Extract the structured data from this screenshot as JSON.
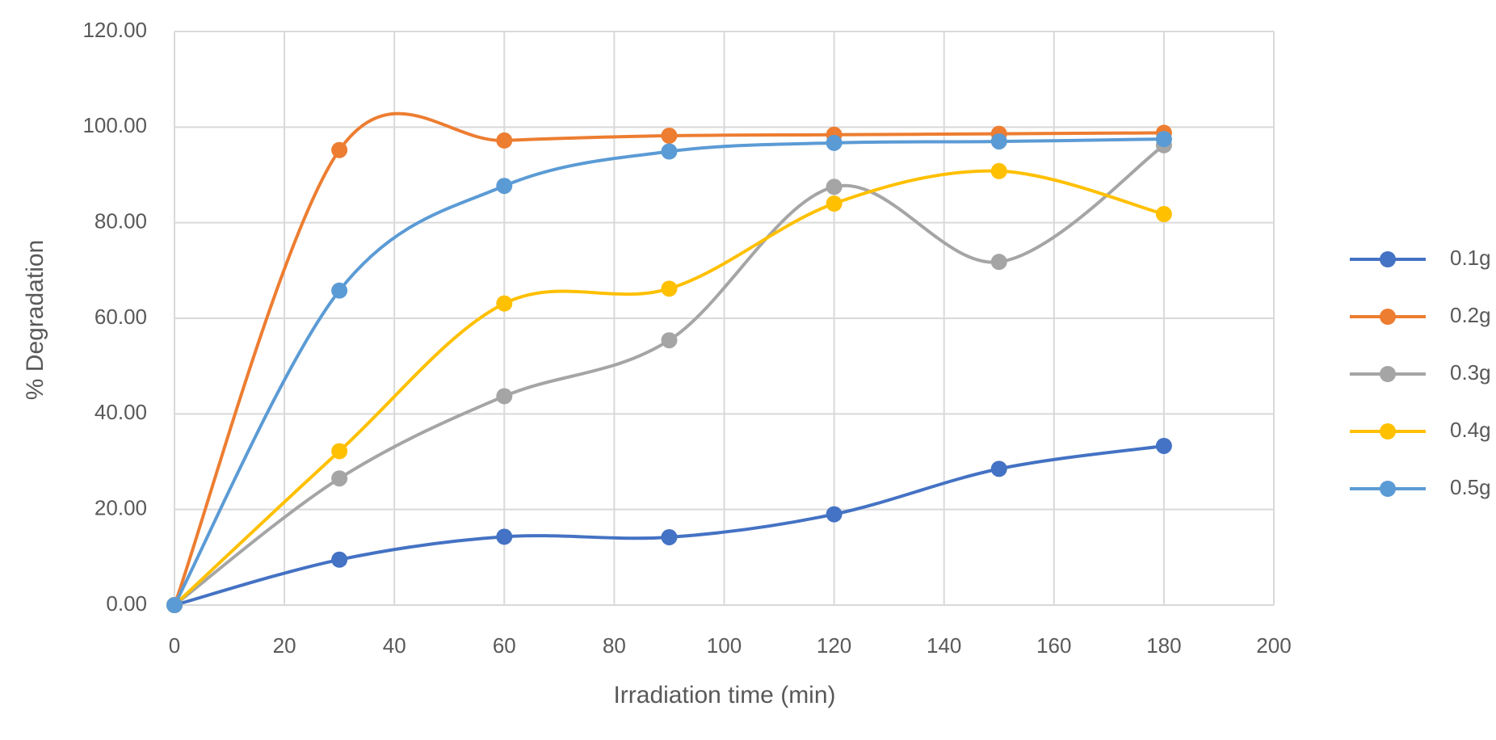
{
  "chart_data": {
    "type": "line",
    "smooth": true,
    "x_label": "Irradiation time (min)",
    "y_label": "% Degradation",
    "x": [
      0,
      30,
      60,
      90,
      120,
      150,
      180
    ],
    "series": [
      {
        "name": "0.1g",
        "color": "#4472c4",
        "values": [
          0,
          9.5,
          14.3,
          14.2,
          19,
          28.5,
          33.3
        ]
      },
      {
        "name": "0.2g",
        "color": "#ed7d31",
        "values": [
          0,
          95.2,
          97.2,
          98.2,
          98.4,
          98.6,
          98.8
        ]
      },
      {
        "name": "0.3g",
        "color": "#a5a5a5",
        "values": [
          0,
          26.5,
          43.7,
          55.4,
          87.5,
          71.8,
          96.2
        ]
      },
      {
        "name": "0.4g",
        "color": "#ffc000",
        "values": [
          0,
          32.2,
          63.1,
          66.2,
          84,
          90.8,
          81.8
        ]
      },
      {
        "name": "0.5g",
        "color": "#5b9bd5",
        "values": [
          0,
          65.8,
          87.7,
          94.9,
          96.7,
          97,
          97.5
        ]
      }
    ],
    "xlim": [
      0,
      200
    ],
    "xticks": [
      0,
      20,
      40,
      60,
      80,
      100,
      120,
      140,
      160,
      180,
      200
    ],
    "ylim": [
      0,
      120
    ],
    "yticks": [
      {
        "value": 0,
        "label": "0.00"
      },
      {
        "value": 20,
        "label": "20.00"
      },
      {
        "value": 40,
        "label": "40.00"
      },
      {
        "value": 60,
        "label": "60.00"
      },
      {
        "value": 80,
        "label": "80.00"
      },
      {
        "value": 100,
        "label": "100.00"
      },
      {
        "value": 120,
        "label": "120.00"
      }
    ],
    "grid": true,
    "legend": "right"
  }
}
